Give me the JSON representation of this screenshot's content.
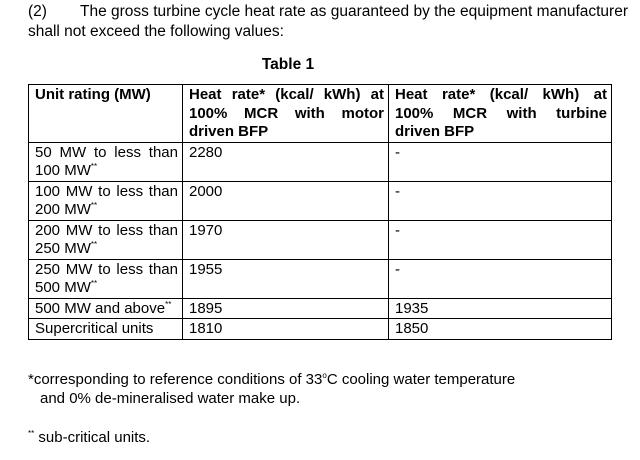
{
  "intro": {
    "number": "(2)",
    "text": "The gross turbine cycle heat rate as guaranteed by the equipment manufacturer shall not exceed the following values:"
  },
  "table_title": "Table 1",
  "table": {
    "headers": [
      "Unit rating (MW)",
      "Heat rate* (kcal/ kWh) at 100% MCR with motor driven BFP",
      "Heat rate* (kcal/ kWh) at 100% MCR with turbine driven BFP"
    ],
    "rows": [
      {
        "rating": "50 MW to less than 100 MW",
        "mark": "**",
        "motor": "2280",
        "turbine": "-"
      },
      {
        "rating": "100 MW to less than 200 MW",
        "mark": "**",
        "motor": "2000",
        "turbine": "-"
      },
      {
        "rating": "200 MW to less than 250 MW",
        "mark": "**",
        "motor": "1970",
        "turbine": "-"
      },
      {
        "rating": "250 MW to less than 500 MW",
        "mark": "**",
        "motor": "1955",
        "turbine": "-"
      },
      {
        "rating": "500 MW and above",
        "mark": "**",
        "motor": "1895",
        "turbine": "1935"
      },
      {
        "rating": "Supercritical units",
        "mark": "",
        "motor": "1810",
        "turbine": "1850"
      }
    ]
  },
  "footnotes": {
    "star_line1_a": "*corresponding to reference conditions of 33",
    "star_degree": "o",
    "star_line1_b": "C cooling water temperature",
    "star_line2": "and 0% de-mineralised water make up.",
    "double_star_mark": "**",
    "double_star_text": " sub-critical units."
  }
}
